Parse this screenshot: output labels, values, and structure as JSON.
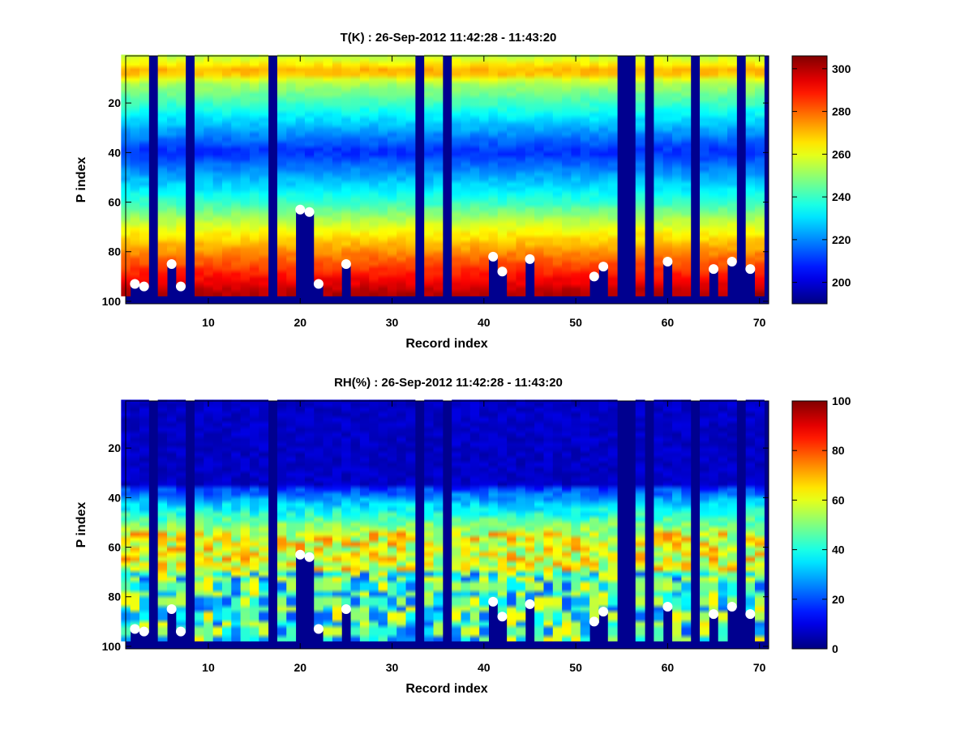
{
  "chart_data": [
    {
      "type": "heatmap",
      "title": "T(K) : 26-Sep-2012 11:42:28 - 11:43:20",
      "xlabel": "Record index",
      "ylabel": "P index",
      "xlim": [
        1,
        71
      ],
      "ylim": [
        1,
        101
      ],
      "y_reversed": true,
      "x_ticks": [
        "10",
        "20",
        "30",
        "40",
        "50",
        "60",
        "70"
      ],
      "y_ticks": [
        "20",
        "40",
        "60",
        "80",
        "100"
      ],
      "colorbar": {
        "min": 190,
        "max": 306,
        "ticks": [
          "200",
          "220",
          "240",
          "260",
          "280",
          "300"
        ],
        "colormap": "jet"
      },
      "fill_value_records": [
        4,
        8,
        17,
        33,
        36,
        55,
        56,
        58,
        63,
        68
      ],
      "marker_color": "#ffffff",
      "surface_markers": [
        {
          "record": 2,
          "p_index": 93
        },
        {
          "record": 3,
          "p_index": 94
        },
        {
          "record": 6,
          "p_index": 85
        },
        {
          "record": 7,
          "p_index": 94
        },
        {
          "record": 20,
          "p_index": 63
        },
        {
          "record": 21,
          "p_index": 64
        },
        {
          "record": 22,
          "p_index": 93
        },
        {
          "record": 25,
          "p_index": 85
        },
        {
          "record": 41,
          "p_index": 82
        },
        {
          "record": 42,
          "p_index": 88
        },
        {
          "record": 45,
          "p_index": 83
        },
        {
          "record": 52,
          "p_index": 90
        },
        {
          "record": 53,
          "p_index": 86
        },
        {
          "record": 60,
          "p_index": 84
        },
        {
          "record": 65,
          "p_index": 87
        },
        {
          "record": 67,
          "p_index": 84
        },
        {
          "record": 69,
          "p_index": 87
        }
      ]
    },
    {
      "type": "heatmap",
      "title": "RH(%) : 26-Sep-2012 11:42:28 - 11:43:20",
      "xlabel": "Record index",
      "ylabel": "P index",
      "xlim": [
        1,
        71
      ],
      "ylim": [
        1,
        101
      ],
      "y_reversed": true,
      "x_ticks": [
        "10",
        "20",
        "30",
        "40",
        "50",
        "60",
        "70"
      ],
      "y_ticks": [
        "20",
        "40",
        "60",
        "80",
        "100"
      ],
      "colorbar": {
        "min": 0,
        "max": 100,
        "ticks": [
          "0",
          "20",
          "40",
          "60",
          "80",
          "100"
        ],
        "colormap": "jet"
      },
      "fill_value_records": [
        4,
        8,
        17,
        33,
        36,
        55,
        56,
        58,
        63,
        68
      ],
      "marker_color": "#ffffff",
      "surface_markers": [
        {
          "record": 2,
          "p_index": 93
        },
        {
          "record": 3,
          "p_index": 94
        },
        {
          "record": 6,
          "p_index": 85
        },
        {
          "record": 7,
          "p_index": 94
        },
        {
          "record": 20,
          "p_index": 63
        },
        {
          "record": 21,
          "p_index": 64
        },
        {
          "record": 22,
          "p_index": 93
        },
        {
          "record": 25,
          "p_index": 85
        },
        {
          "record": 41,
          "p_index": 82
        },
        {
          "record": 42,
          "p_index": 88
        },
        {
          "record": 45,
          "p_index": 83
        },
        {
          "record": 52,
          "p_index": 90
        },
        {
          "record": 53,
          "p_index": 86
        },
        {
          "record": 60,
          "p_index": 84
        },
        {
          "record": 65,
          "p_index": 87
        },
        {
          "record": 67,
          "p_index": 84
        },
        {
          "record": 69,
          "p_index": 87
        }
      ]
    }
  ]
}
